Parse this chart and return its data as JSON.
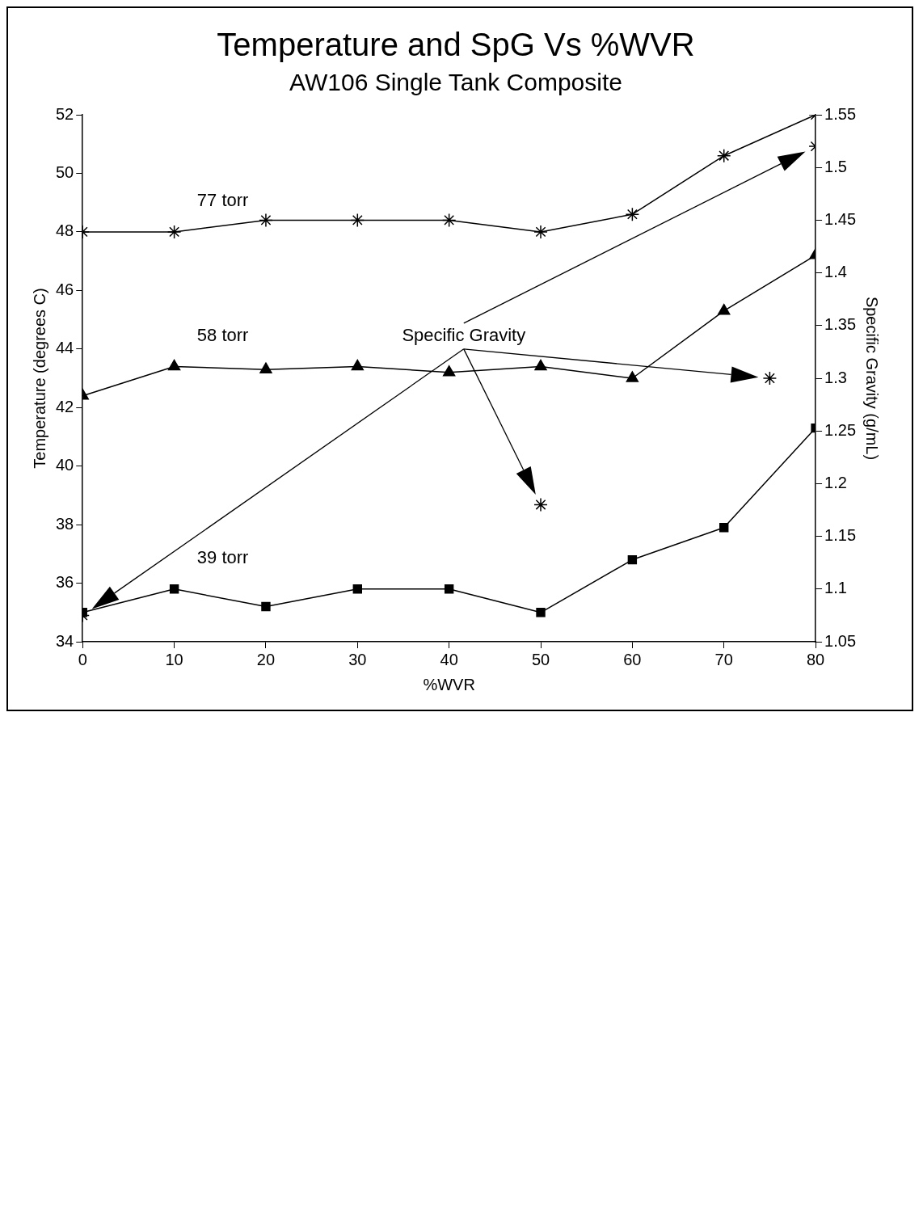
{
  "chart_data": {
    "type": "line",
    "title": "Temperature and SpG Vs %WVR",
    "subtitle": "AW106 Single Tank Composite",
    "xlabel": "%WVR",
    "ylabel": "Temperature (degrees C)",
    "y2label": "Specific Gravity (g/mL)",
    "xlim": [
      0,
      80
    ],
    "xticks": [
      0,
      10,
      20,
      30,
      40,
      50,
      60,
      70,
      80
    ],
    "ylim": [
      34,
      52
    ],
    "yticks": [
      34,
      36,
      38,
      40,
      42,
      44,
      46,
      48,
      50,
      52
    ],
    "y2lim": [
      1.05,
      1.55
    ],
    "y2ticks": [
      1.05,
      1.1,
      1.15,
      1.2,
      1.25,
      1.3,
      1.35,
      1.4,
      1.45,
      1.5,
      1.55
    ],
    "grid": false,
    "legend": false,
    "series": [
      {
        "color": "#000000",
        "marker": "cross",
        "x": [
          0,
          10,
          20,
          30,
          40,
          50,
          60,
          70,
          80
        ],
        "values": [
          48.0,
          48.0,
          48.4,
          48.4,
          48.4,
          48.0,
          48.6,
          50.6,
          52.0
        ]
      },
      {
        "color": "#000000",
        "marker": "triangle",
        "x": [
          0,
          10,
          20,
          30,
          40,
          50,
          60,
          70,
          80
        ],
        "values": [
          42.4,
          43.4,
          43.3,
          43.4,
          43.2,
          43.4,
          43.0,
          45.3,
          47.2
        ]
      },
      {
        "color": "#000000",
        "marker": "square",
        "x": [
          0,
          10,
          20,
          30,
          40,
          50,
          60,
          70,
          80
        ],
        "values": [
          35.0,
          35.8,
          35.2,
          35.8,
          35.8,
          35.0,
          36.8,
          37.9,
          41.3
        ]
      },
      {
        "type": "scatter",
        "color": "#000000",
        "marker": "cross",
        "axis": "y2",
        "x": [
          0,
          50,
          75,
          80
        ],
        "values": [
          1.075,
          1.18,
          1.3,
          1.52
        ]
      }
    ],
    "annotations": [
      "77 torr",
      "58 torr",
      "39 torr",
      "Specific Gravity"
    ]
  }
}
